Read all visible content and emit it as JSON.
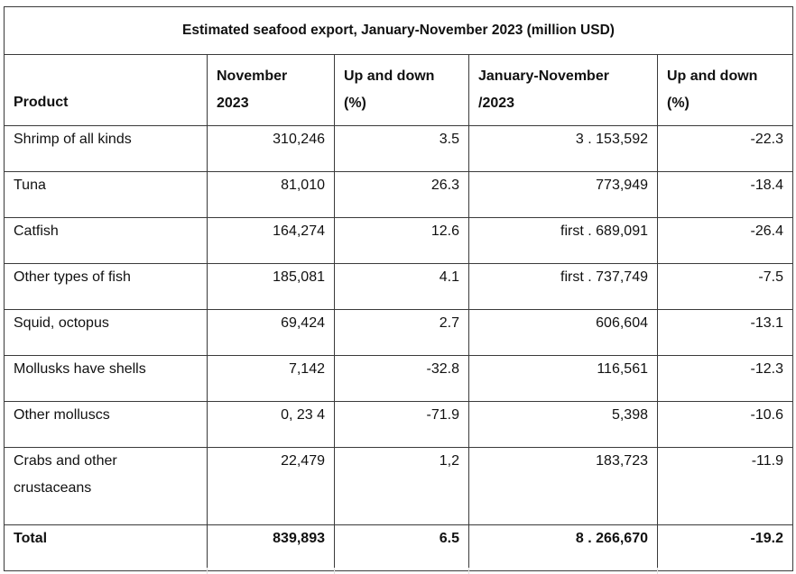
{
  "table": {
    "title": "Estimated seafood export, January-November 2023 (million USD)",
    "headers": {
      "product": "Product",
      "november": [
        "November",
        "2023"
      ],
      "up_down_1": [
        "Up and down",
        "(%)"
      ],
      "jan_nov": [
        "January-November",
        "/2023"
      ],
      "up_down_2": [
        "Up and down",
        "(%)"
      ]
    },
    "rows": [
      {
        "product": "Shrimp of all kinds",
        "november": "310,246",
        "change_nov": "3.5",
        "jan_nov": "3 . 153,592",
        "change_jan_nov": "-22.3"
      },
      {
        "product": "Tuna",
        "november": "81,010",
        "change_nov": "26.3",
        "jan_nov": "773,949",
        "change_jan_nov": "-18.4"
      },
      {
        "product": "Catfish",
        "november": "164,274",
        "change_nov": "12.6",
        "jan_nov": "first . 689,091",
        "change_jan_nov": "-26.4"
      },
      {
        "product": "Other types of fish",
        "november": "185,081",
        "change_nov": "4.1",
        "jan_nov": "first . 737,749",
        "change_jan_nov": "-7.5"
      },
      {
        "product": "Squid, octopus",
        "november": "69,424",
        "change_nov": "2.7",
        "jan_nov": "606,604",
        "change_jan_nov": "-13.1"
      },
      {
        "product": "Mollusks have shells",
        "november": "7,142",
        "change_nov": "-32.8",
        "jan_nov": "116,561",
        "change_jan_nov": "-12.3"
      },
      {
        "product": "Other molluscs",
        "november": "0, 23 4",
        "change_nov": "-71.9",
        "jan_nov": "5,398",
        "change_jan_nov": "-10.6"
      },
      {
        "product": "Crabs and other crustaceans",
        "product_lines": [
          "Crabs and other",
          "crustaceans"
        ],
        "november": "22,479",
        "change_nov": "1,2",
        "jan_nov": "183,723",
        "change_jan_nov": "-11.9"
      }
    ],
    "total": {
      "product": "Total",
      "november": "839,893",
      "change_nov": "6.5",
      "jan_nov": "8 . 266,670",
      "change_jan_nov": "-19.2"
    }
  }
}
